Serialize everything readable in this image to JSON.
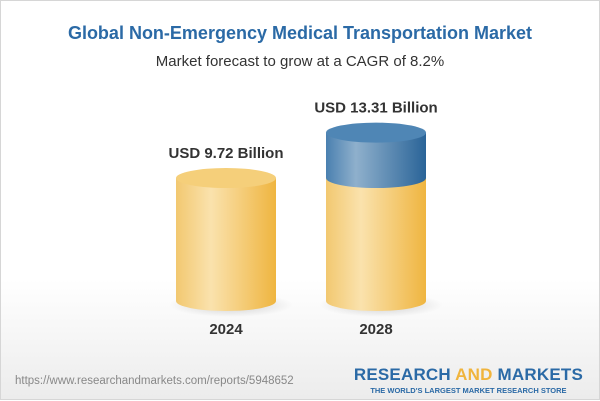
{
  "header": {
    "title": "Global Non-Emergency Medical Transportation Market",
    "subtitle": "Market forecast to grow at a CAGR of 8.2%"
  },
  "chart_data": {
    "type": "bar",
    "style": "3d-cylinder",
    "categories": [
      "2024",
      "2028"
    ],
    "values": [
      9.72,
      13.31
    ],
    "data_labels": [
      "USD 9.72 Billion",
      "USD 13.31 Billion"
    ],
    "unit": "USD Billion",
    "cagr": "8.2%",
    "colors": {
      "base": "#f2c060",
      "growth": "#3f78a8"
    }
  },
  "footer": {
    "url": "https://www.researchandmarkets.com/reports/5948652",
    "logo_part1": "RESEARCH ",
    "logo_part2": "AND",
    "logo_part3": " MARKETS",
    "tagline": "THE WORLD'S LARGEST MARKET RESEARCH STORE"
  }
}
